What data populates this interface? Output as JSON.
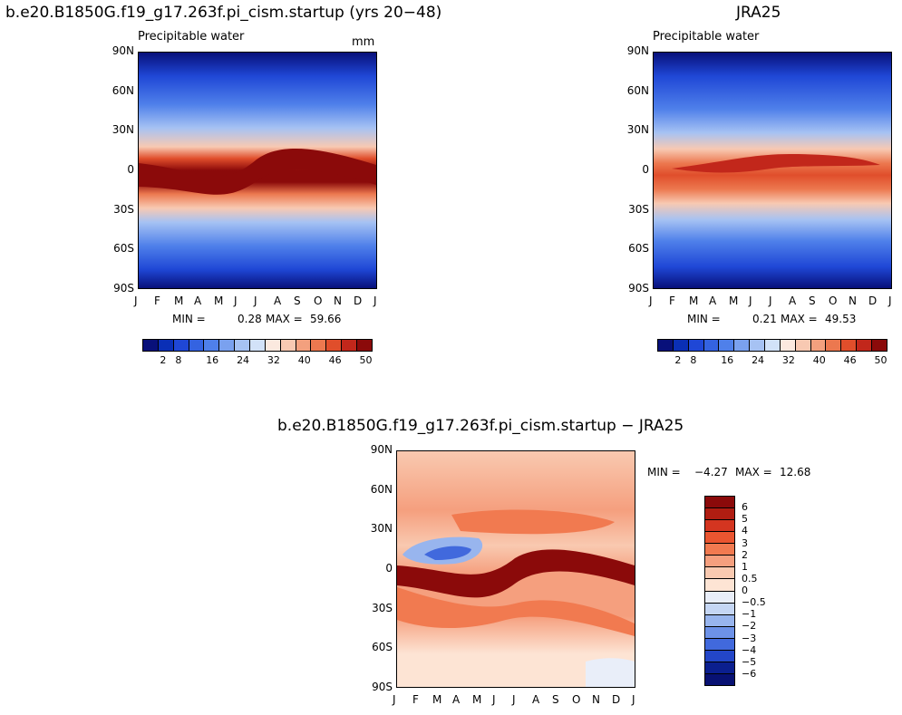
{
  "chart_data": [
    {
      "type": "heatmap",
      "title": "b.e20.B1850G.f19_g17.263f.pi_cism.startup (yrs 20−48)",
      "subtitle": "Precipitable water",
      "units": "mm",
      "x_ticks": [
        "J",
        "F",
        "M",
        "A",
        "M",
        "J",
        "J",
        "A",
        "S",
        "O",
        "N",
        "D",
        "J"
      ],
      "y_ticks": [
        "90N",
        "60N",
        "30N",
        "0",
        "30S",
        "60S",
        "90S"
      ],
      "min_label": "MIN =",
      "min_value": "0.28",
      "max_label": "MAX =",
      "max_value": "59.66",
      "colorbar_labels": [
        "2",
        "8",
        "16",
        "24",
        "32",
        "40",
        "46",
        "50"
      ]
    },
    {
      "type": "heatmap",
      "title": "JRA25",
      "subtitle": "Precipitable water",
      "x_ticks": [
        "J",
        "F",
        "M",
        "A",
        "M",
        "J",
        "J",
        "A",
        "S",
        "O",
        "N",
        "D",
        "J"
      ],
      "y_ticks": [
        "90N",
        "60N",
        "30N",
        "0",
        "30S",
        "60S",
        "90S"
      ],
      "min_label": "MIN =",
      "min_value": "0.21",
      "max_label": "MAX =",
      "max_value": "49.53",
      "colorbar_labels": [
        "2",
        "8",
        "16",
        "24",
        "32",
        "40",
        "46",
        "50"
      ]
    },
    {
      "type": "heatmap",
      "title": "b.e20.B1850G.f19_g17.263f.pi_cism.startup − JRA25",
      "x_ticks": [
        "J",
        "F",
        "M",
        "A",
        "M",
        "J",
        "J",
        "A",
        "S",
        "O",
        "N",
        "D",
        "J"
      ],
      "y_ticks": [
        "90N",
        "60N",
        "30N",
        "0",
        "30S",
        "60S",
        "90S"
      ],
      "min_label": "MIN =",
      "min_value": "−4.27",
      "max_label": "MAX =",
      "max_value": "12.68",
      "colorbar_labels": [
        "6",
        "5",
        "4",
        "3",
        "2",
        "1",
        "0.5",
        "0",
        "−0.5",
        "−1",
        "−2",
        "−3",
        "−4",
        "−5",
        "−6"
      ]
    }
  ],
  "colors": {
    "abs_scale": [
      "#08107a",
      "#0a2fb6",
      "#1f47d6",
      "#3463e1",
      "#4f80ea",
      "#7aa1ef",
      "#a6c2f3",
      "#d2e2f8",
      "#fbe9df",
      "#f8c9b2",
      "#f3a07e",
      "#ec784f",
      "#e04e2b",
      "#c2271b",
      "#8b0a0a"
    ],
    "diff_scale": [
      "#8b0a0a",
      "#b01d12",
      "#d43520",
      "#ea5530",
      "#f17a50",
      "#f59f7e",
      "#f9c9b0",
      "#fde4d4",
      "#e9eef9",
      "#c5d6f4",
      "#98b5ee",
      "#6d92e8",
      "#4169dd",
      "#2346c8",
      "#0b1f8f",
      "#081173"
    ]
  }
}
